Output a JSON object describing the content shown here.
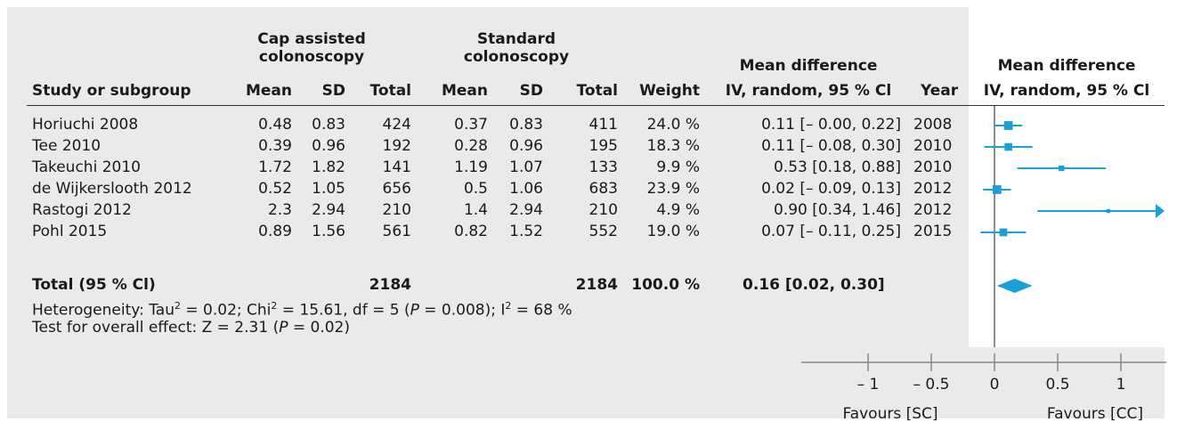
{
  "groups": {
    "experimental_line1": "Cap assisted",
    "experimental_line2": "colonoscopy",
    "control_line1": "Standard",
    "control_line2": "colonoscopy",
    "md_line1": "Mean difference",
    "md_line2": "IV, random, 95 % Cl",
    "plot_line1": "Mean difference",
    "plot_line2": "IV, random, 95 % Cl"
  },
  "columns": {
    "study": "Study or subgroup",
    "exp_mean": "Mean",
    "exp_sd": "SD",
    "exp_total": "Total",
    "ctl_mean": "Mean",
    "ctl_sd": "SD",
    "ctl_total": "Total",
    "weight": "Weight",
    "year": "Year"
  },
  "rows": [
    {
      "study": "Horiuchi 2008",
      "exp_mean": "0.48",
      "exp_sd": "0.83",
      "exp_total": "424",
      "ctl_mean": "0.37",
      "ctl_sd": "0.83",
      "ctl_total": "411",
      "weight": "24.0 %",
      "ci_text": "0.11 [– 0.00, 0.22]",
      "year": "2008"
    },
    {
      "study": "Tee 2010",
      "exp_mean": "0.39",
      "exp_sd": "0.96",
      "exp_total": "192",
      "ctl_mean": "0.28",
      "ctl_sd": "0.96",
      "ctl_total": "195",
      "weight": "18.3 %",
      "ci_text": "0.11 [– 0.08, 0.30]",
      "year": "2010"
    },
    {
      "study": "Takeuchi 2010",
      "exp_mean": "1.72",
      "exp_sd": "1.82",
      "exp_total": "141",
      "ctl_mean": "1.19",
      "ctl_sd": "1.07",
      "ctl_total": "133",
      "weight": "9.9 %",
      "ci_text": "0.53 [0.18, 0.88]",
      "year": "2010"
    },
    {
      "study": "de Wijkerslooth 2012",
      "exp_mean": "0.52",
      "exp_sd": "1.05",
      "exp_total": "656",
      "ctl_mean": "0.5",
      "ctl_sd": "1.06",
      "ctl_total": "683",
      "weight": "23.9 %",
      "ci_text": "0.02 [– 0.09, 0.13]",
      "year": "2012"
    },
    {
      "study": "Rastogi 2012",
      "exp_mean": "2.3",
      "exp_sd": "2.94",
      "exp_total": "210",
      "ctl_mean": "1.4",
      "ctl_sd": "2.94",
      "ctl_total": "210",
      "weight": "4.9 %",
      "ci_text": "0.90 [0.34, 1.46]",
      "year": "2012"
    },
    {
      "study": "Pohl 2015",
      "exp_mean": "0.89",
      "exp_sd": "1.56",
      "exp_total": "561",
      "ctl_mean": "0.82",
      "ctl_sd": "1.52",
      "ctl_total": "552",
      "weight": "19.0 %",
      "ci_text": "0.07 [– 0.11, 0.25]",
      "year": "2015"
    }
  ],
  "total": {
    "label": "Total (95 % Cl)",
    "exp_total": "2184",
    "ctl_total": "2184",
    "weight": "100.0 %",
    "ci_text": "0.16 [0.02, 0.30]"
  },
  "heterogeneity": {
    "prefix": "Heterogeneity: Tau",
    "sup1": "2",
    "mid1": " = 0.02; Chi",
    "sup2": "2",
    "mid2": " = 15.61, df = 5 (",
    "p_italic": "P",
    "mid3": " = 0.008); I",
    "sup3": "2",
    "end": " = 68 %"
  },
  "overall_effect": {
    "prefix": "Test for overall effect: Z = 2.31 (",
    "p_italic": "P",
    "end": " = 0.02)"
  },
  "favours": {
    "left": "Favours [SC]",
    "right": "Favours [CC]"
  },
  "colors": {
    "marker": "#1aa0d8",
    "axis": "#888888",
    "background": "#eaeaea"
  },
  "chart_data": {
    "type": "forest",
    "measure": "Mean difference",
    "xlim": [
      -1.25,
      1.5
    ],
    "ticks": [
      {
        "value": -1,
        "label": "– 1"
      },
      {
        "value": -0.5,
        "label": "– 0.5"
      },
      {
        "value": 0,
        "label": "0"
      },
      {
        "value": 0.5,
        "label": "0.5"
      },
      {
        "value": 1,
        "label": "1"
      }
    ],
    "studies": [
      {
        "name": "Horiuchi 2008",
        "md": 0.11,
        "lower": 0.0,
        "upper": 0.22,
        "weight": 24.0
      },
      {
        "name": "Tee 2010",
        "md": 0.11,
        "lower": -0.08,
        "upper": 0.3,
        "weight": 18.3
      },
      {
        "name": "Takeuchi 2010",
        "md": 0.53,
        "lower": 0.18,
        "upper": 0.88,
        "weight": 9.9
      },
      {
        "name": "de Wijkerslooth 2012",
        "md": 0.02,
        "lower": -0.09,
        "upper": 0.13,
        "weight": 23.9
      },
      {
        "name": "Rastogi 2012",
        "md": 0.9,
        "lower": 0.34,
        "upper": 1.46,
        "weight": 4.9
      },
      {
        "name": "Pohl 2015",
        "md": 0.07,
        "lower": -0.11,
        "upper": 0.25,
        "weight": 19.0
      }
    ],
    "pooled": {
      "md": 0.16,
      "lower": 0.02,
      "upper": 0.3
    },
    "favours_left": "Favours [SC]",
    "favours_right": "Favours [CC]"
  }
}
